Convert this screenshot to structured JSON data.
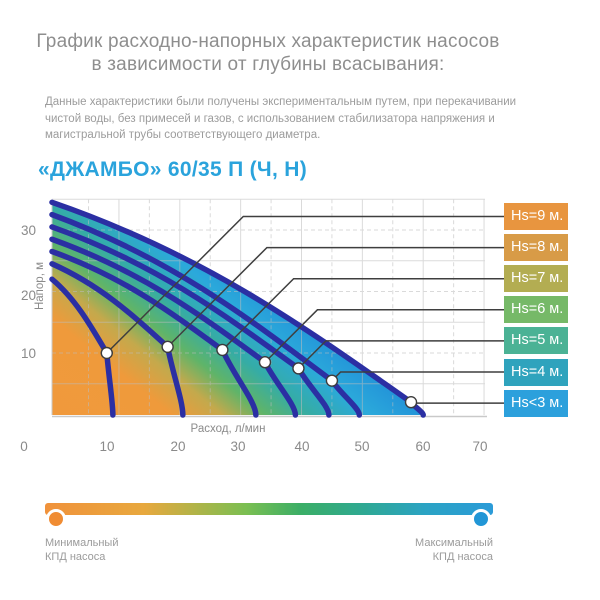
{
  "header": {
    "title_line1": "График расходно-напорных характеристик насосов",
    "title_line2": "в зависимости от глубины всасывания:",
    "description": "Данные характеристики были получены экспериментальным путем, при перекачивании чистой воды, без примесей и газов, с использованием стабилизатора напряжения и магистральной трубы соответствующего диаметра.",
    "product_title": "«ДЖАМБО» 60/35 П (Ч, Н)"
  },
  "chart_data": {
    "type": "line",
    "title": "«ДЖАМБО» 60/35 П (Ч, Н)",
    "xlabel": "Расход, л/мин",
    "ylabel": "Напор, м",
    "xlim": [
      0,
      70
    ],
    "ylim": [
      0,
      36
    ],
    "x_ticks": [
      "0",
      "10",
      "20",
      "30",
      "40",
      "50",
      "60",
      "70"
    ],
    "y_ticks": [
      "10",
      "20",
      "30"
    ],
    "grid": "solid lines every 10 л/мин and at 5/15/25/35 м, dashed lines midway",
    "legend_position": "right",
    "curve_color": "#2B2FA3",
    "marker": "white dot with dark ring on each curve",
    "series": [
      {
        "name": "Hs=9 м.",
        "legend_color": "#E8953F",
        "points": [
          [
            0,
            22
          ],
          [
            8,
            10
          ],
          [
            9,
            0
          ]
        ],
        "marker_at": [
          8,
          10
        ]
      },
      {
        "name": "Hs=8 м.",
        "legend_color": "#D89B47",
        "points": [
          [
            0,
            24.5
          ],
          [
            18,
            11
          ],
          [
            20.5,
            0
          ]
        ],
        "marker_at": [
          18,
          11
        ]
      },
      {
        "name": "Hs=7 м.",
        "legend_color": "#B3AD52",
        "points": [
          [
            0,
            26.5
          ],
          [
            27,
            10.5
          ],
          [
            32.5,
            0
          ]
        ],
        "marker_at": [
          27,
          10.5
        ]
      },
      {
        "name": "Hs=6 м.",
        "legend_color": "#76B968",
        "points": [
          [
            0,
            28.5
          ],
          [
            34,
            8.5
          ],
          [
            39,
            0
          ]
        ],
        "marker_at": [
          34,
          8.5
        ]
      },
      {
        "name": "Hs=5 м.",
        "legend_color": "#4BB295",
        "points": [
          [
            0,
            30.5
          ],
          [
            39.5,
            7.5
          ],
          [
            44.5,
            0
          ]
        ],
        "marker_at": [
          39.5,
          7.5
        ]
      },
      {
        "name": "Hs=4 м.",
        "legend_color": "#2FA3BD",
        "points": [
          [
            0,
            32.5
          ],
          [
            45,
            5.5
          ],
          [
            49.5,
            0
          ]
        ],
        "marker_at": [
          45,
          5.5
        ]
      },
      {
        "name": "Hs<3 м.",
        "legend_color": "#2CA0DC",
        "points": [
          [
            0,
            34.5
          ],
          [
            58,
            2
          ],
          [
            60,
            0
          ]
        ],
        "marker_at": [
          58,
          2
        ]
      }
    ],
    "fill_gradient": [
      {
        "offset": 0,
        "color": "#F0993C"
      },
      {
        "offset": 0.34,
        "color": "#EF9A3B"
      },
      {
        "offset": 0.47,
        "color": "#C4A94C"
      },
      {
        "offset": 0.58,
        "color": "#5FB469"
      },
      {
        "offset": 0.7,
        "color": "#35ACA6"
      },
      {
        "offset": 0.85,
        "color": "#2BA9DB"
      },
      {
        "offset": 1,
        "color": "#2292D8"
      }
    ]
  },
  "efficiency_scale": {
    "min_label": "Минимальный\nКПД насоса",
    "max_label": "Максимальный\nКПД насоса",
    "min_dot_color": "#F08C33",
    "max_dot_color": "#2196D6",
    "bar_gradient": [
      {
        "offset": 0,
        "color": "#F0923B"
      },
      {
        "offset": 22,
        "color": "#E8A83E"
      },
      {
        "offset": 45,
        "color": "#7ABF52"
      },
      {
        "offset": 57,
        "color": "#3BAE66"
      },
      {
        "offset": 70,
        "color": "#2FA98F"
      },
      {
        "offset": 85,
        "color": "#2BA3C4"
      },
      {
        "offset": 100,
        "color": "#2B9BD8"
      }
    ]
  },
  "colors": {
    "title_text": "#8E8E8E",
    "body_text": "#9C9C9C",
    "accent_blue": "#2AA3DC",
    "tick_text": "#8A8A8A",
    "grid_line": "#BDBDBD",
    "leader_line": "#3F3F3F"
  }
}
